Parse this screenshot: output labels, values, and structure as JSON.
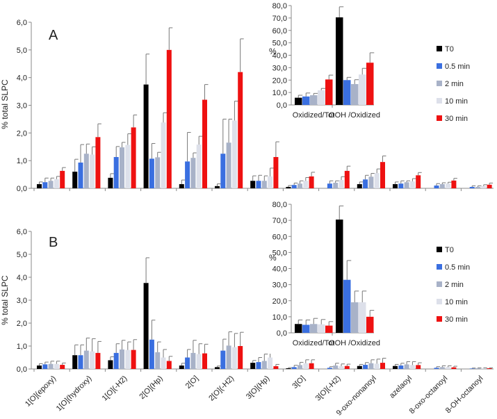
{
  "series_colors": {
    "T0": "#000000",
    "0.5 min": "#3a6fe0",
    "2 min": "#a8b2c8",
    "10 min": "#dde0ea",
    "30 min": "#ee1111"
  },
  "chart_data": [
    {
      "id": "A",
      "type": "bar",
      "panel_label": "A",
      "ylabel": "% total SLPC",
      "ylim": [
        0,
        6
      ],
      "yticks": [
        "0,0",
        "1,0",
        "2,0",
        "3,0",
        "4,0",
        "5,0",
        "6,0"
      ],
      "grid": false,
      "categories": [
        "1[O](epoxy)",
        "1[O](hydroxy)",
        "1[O](-H2)",
        "2[O](Hp)",
        "2[O]",
        "2[O](-H2)",
        "3[O](Hp)",
        "3[O]",
        "3[O](-H2)",
        "9-oxo-nonanoyl",
        "azelaoyl",
        "8-oxo-octanoyl",
        "8-OH-octanoyl"
      ],
      "series": [
        {
          "name": "T0",
          "values": [
            0.15,
            0.6,
            0.38,
            3.75,
            0.15,
            0.08,
            0.27,
            0.05,
            0,
            0.15,
            0.15,
            0,
            0
          ],
          "errors": [
            0.08,
            0.45,
            0.15,
            1.1,
            0.15,
            0.08,
            0.18,
            0.05,
            0,
            0.08,
            0.08,
            0,
            0
          ]
        },
        {
          "name": "0.5 min",
          "values": [
            0.22,
            0.93,
            1.13,
            1.07,
            0.97,
            1.25,
            0.27,
            0.12,
            0.17,
            0.32,
            0.17,
            0.1,
            0.05
          ],
          "errors": [
            0.15,
            0.65,
            0.38,
            0.55,
            1.05,
            1.25,
            0.2,
            0.07,
            0.1,
            0.15,
            0.1,
            0.07,
            0.04
          ]
        },
        {
          "name": "2 min",
          "values": [
            0.27,
            1.25,
            1.48,
            1.12,
            1.1,
            1.65,
            0.27,
            0.17,
            0.2,
            0.42,
            0.22,
            0.15,
            0.05
          ],
          "errors": [
            0.1,
            0.35,
            0.18,
            0.18,
            0.18,
            0.85,
            0.18,
            0.1,
            0.07,
            0.12,
            0.05,
            0.05,
            0.04
          ]
        },
        {
          "name": "10 min",
          "values": [
            0.33,
            1.22,
            1.57,
            2.38,
            1.58,
            2.45,
            0.43,
            0.27,
            0.3,
            0.55,
            0.25,
            0.17,
            0.08
          ],
          "errors": [
            0.1,
            0.28,
            0.4,
            0.35,
            0.3,
            0.7,
            0.3,
            0.12,
            0.12,
            0.15,
            0.1,
            0.05,
            0.05
          ]
        },
        {
          "name": "30 min",
          "values": [
            0.63,
            1.85,
            2.2,
            5.0,
            3.2,
            4.2,
            1.13,
            0.43,
            0.63,
            0.95,
            0.47,
            0.28,
            0.13
          ],
          "errors": [
            0.12,
            0.48,
            0.45,
            0.8,
            0.55,
            1.2,
            0.55,
            0.15,
            0.17,
            0.22,
            0.1,
            0.08,
            0.06
          ]
        }
      ],
      "inset": {
        "type": "bar",
        "ylabel": "%",
        "ylim": [
          0,
          80
        ],
        "yticks": [
          "0,0",
          "10,0",
          "20,0",
          "30,0",
          "40,0",
          "50,0",
          "60,0",
          "70,0",
          "80,0"
        ],
        "categories": [
          "Oxidized/Tot",
          "OOH /Oxidized"
        ],
        "series": [
          {
            "name": "T0",
            "values": [
              5.8,
              70.5
            ],
            "errors": [
              2.0,
              8.5
            ]
          },
          {
            "name": "0.5 min",
            "values": [
              6.8,
              20.0
            ],
            "errors": [
              2.8,
              2.2
            ]
          },
          {
            "name": "2 min",
            "values": [
              7.8,
              16.8
            ],
            "errors": [
              1.5,
              3.5
            ]
          },
          {
            "name": "10 min",
            "values": [
              11.8,
              24.5
            ],
            "errors": [
              1.5,
              5.0
            ]
          },
          {
            "name": "30 min",
            "values": [
              20.5,
              34.0
            ],
            "errors": [
              3.5,
              8.0
            ]
          }
        ],
        "legend": [
          "T0",
          "0.5 min",
          "2 min",
          "10 min",
          "30 min"
        ],
        "legend_position": "right"
      }
    },
    {
      "id": "B",
      "type": "bar",
      "panel_label": "B",
      "ylabel": "% total SLPC",
      "ylim": [
        0,
        6
      ],
      "yticks": [
        "0,0",
        "1,0",
        "2,0",
        "3,0",
        "4,0",
        "5,0",
        "6,0"
      ],
      "grid": false,
      "categories": [
        "1[O](epoxy)",
        "1[O](hydroxy)",
        "1[O](-H2)",
        "2[O](Hp)",
        "2[O]",
        "2[O](-H2)",
        "3[O](Hp)",
        "3[O]",
        "3[O](-H2)",
        "9-oxo-nonanoyl",
        "azelaoyl",
        "8-oxo-octanoyl",
        "8-OH-octanoyl"
      ],
      "series": [
        {
          "name": "T0",
          "values": [
            0.15,
            0.6,
            0.38,
            3.75,
            0.15,
            0.08,
            0.27,
            0.03,
            0,
            0.13,
            0.13,
            0,
            0
          ],
          "errors": [
            0.08,
            0.45,
            0.15,
            1.1,
            0.1,
            0.05,
            0.1,
            0.03,
            0,
            0.07,
            0.07,
            0,
            0
          ]
        },
        {
          "name": "0.5 min",
          "values": [
            0.2,
            0.6,
            0.7,
            1.28,
            0.5,
            0.8,
            0.3,
            0.08,
            0.05,
            0.18,
            0.15,
            0.05,
            0.02
          ],
          "errors": [
            0.1,
            0.45,
            0.4,
            0.85,
            0.35,
            0.5,
            0.2,
            0.08,
            0.05,
            0.1,
            0.1,
            0.05,
            0.02
          ]
        },
        {
          "name": "2 min",
          "values": [
            0.22,
            0.8,
            0.85,
            0.73,
            0.7,
            1.02,
            0.35,
            0.17,
            0.15,
            0.25,
            0.2,
            0.08,
            0.03
          ],
          "errors": [
            0.12,
            0.55,
            0.4,
            0.45,
            0.55,
            0.6,
            0.3,
            0.12,
            0.1,
            0.15,
            0.12,
            0.06,
            0.02
          ]
        },
        {
          "name": "10 min",
          "values": [
            0.22,
            0.77,
            0.83,
            0.5,
            0.65,
            0.95,
            0.5,
            0.25,
            0.12,
            0.23,
            0.17,
            0.08,
            0.03
          ],
          "errors": [
            0.12,
            0.55,
            0.35,
            0.35,
            0.45,
            0.6,
            0.5,
            0.15,
            0.1,
            0.2,
            0.15,
            0.06,
            0.02
          ]
        },
        {
          "name": "30 min",
          "values": [
            0.18,
            0.7,
            0.83,
            0.35,
            0.68,
            1.0,
            0.12,
            0.25,
            0.13,
            0.27,
            0.17,
            0.07,
            0.03
          ],
          "errors": [
            0.08,
            0.5,
            0.45,
            0.2,
            0.4,
            0.6,
            0.08,
            0.15,
            0.08,
            0.2,
            0.1,
            0.05,
            0.02
          ]
        }
      ],
      "inset": {
        "type": "bar",
        "ylabel": "%",
        "ylim": [
          0,
          80
        ],
        "yticks": [
          "0,0",
          "10,0",
          "20,0",
          "30,0",
          "40,0",
          "50,0",
          "60,0",
          "70,0",
          "80,0"
        ],
        "categories": [
          "Oxidized/Tot",
          "OOH /Oxidized"
        ],
        "series": [
          {
            "name": "T0",
            "values": [
              5.5,
              70.5
            ],
            "errors": [
              2.5,
              8.5
            ]
          },
          {
            "name": "0.5 min",
            "values": [
              5.0,
              33.0
            ],
            "errors": [
              3.0,
              12.0
            ]
          },
          {
            "name": "2 min",
            "values": [
              5.5,
              19.0
            ],
            "errors": [
              3.5,
              7.0
            ]
          },
          {
            "name": "10 min",
            "values": [
              5.3,
              19.0
            ],
            "errors": [
              3.0,
              7.0
            ]
          },
          {
            "name": "30 min",
            "values": [
              4.5,
              10.0
            ],
            "errors": [
              2.5,
              4.0
            ]
          }
        ],
        "legend": [
          "T0",
          "0.5 min",
          "2 min",
          "10 min",
          "30 min"
        ],
        "legend_position": "right"
      }
    }
  ]
}
